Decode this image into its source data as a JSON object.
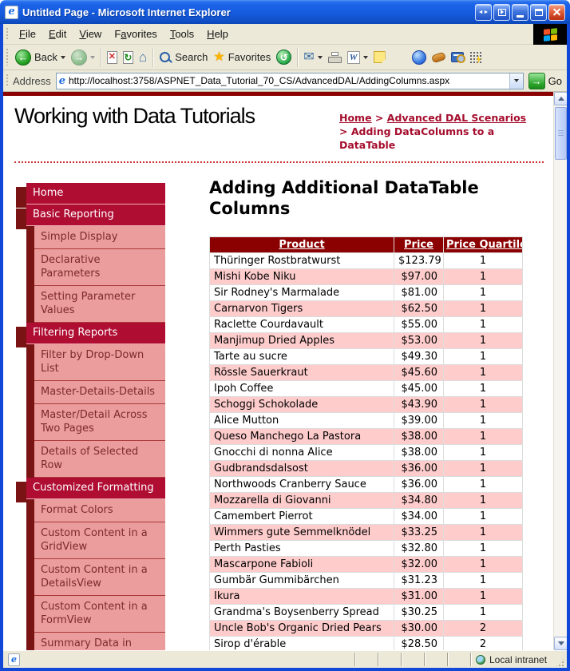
{
  "window": {
    "title": "Untitled Page - Microsoft Internet Explorer"
  },
  "menu": {
    "items": [
      {
        "label": "File",
        "accel": 0
      },
      {
        "label": "Edit",
        "accel": 0
      },
      {
        "label": "View",
        "accel": 0
      },
      {
        "label": "Favorites",
        "accel": 1
      },
      {
        "label": "Tools",
        "accel": 0
      },
      {
        "label": "Help",
        "accel": 0
      }
    ]
  },
  "toolbar": {
    "back_label": "Back",
    "search_label": "Search",
    "favorites_label": "Favorites"
  },
  "address": {
    "label": "Address",
    "url": "http://localhost:3758/ASPNET_Data_Tutorial_70_CS/AdvancedDAL/AddingColumns.aspx",
    "go_label": "Go"
  },
  "page": {
    "site_title": "Working with Data Tutorials",
    "breadcrumb": {
      "links": [
        "Home",
        "Advanced DAL Scenarios"
      ],
      "separator": ">",
      "current": "Adding DataColumns to a DataTable"
    },
    "sidebar": {
      "sections": [
        {
          "title": "Home",
          "items": []
        },
        {
          "title": "Basic Reporting",
          "items": [
            "Simple Display",
            "Declarative Parameters",
            "Setting Parameter Values"
          ]
        },
        {
          "title": "Filtering Reports",
          "items": [
            "Filter by Drop-Down List",
            "Master-Details-Details",
            "Master/Detail Across Two Pages",
            "Details of Selected Row"
          ]
        },
        {
          "title": "Customized Formatting",
          "items": [
            "Format Colors",
            "Custom Content in a GridView",
            "Custom Content in a DetailsView",
            "Custom Content in a FormView",
            "Summary Data in Footer"
          ]
        }
      ]
    },
    "heading": "Adding Additional DataTable Columns",
    "table": {
      "columns": [
        "Product",
        "Price",
        "Price Quartile"
      ],
      "rows": [
        [
          "Thüringer Rostbratwurst",
          "$123.79",
          "1"
        ],
        [
          "Mishi Kobe Niku",
          "$97.00",
          "1"
        ],
        [
          "Sir Rodney's Marmalade",
          "$81.00",
          "1"
        ],
        [
          "Carnarvon Tigers",
          "$62.50",
          "1"
        ],
        [
          "Raclette Courdavault",
          "$55.00",
          "1"
        ],
        [
          "Manjimup Dried Apples",
          "$53.00",
          "1"
        ],
        [
          "Tarte au sucre",
          "$49.30",
          "1"
        ],
        [
          "Rössle Sauerkraut",
          "$45.60",
          "1"
        ],
        [
          "Ipoh Coffee",
          "$45.00",
          "1"
        ],
        [
          "Schoggi Schokolade",
          "$43.90",
          "1"
        ],
        [
          "Alice Mutton",
          "$39.00",
          "1"
        ],
        [
          "Queso Manchego La Pastora",
          "$38.00",
          "1"
        ],
        [
          "Gnocchi di nonna Alice",
          "$38.00",
          "1"
        ],
        [
          "Gudbrandsdalsost",
          "$36.00",
          "1"
        ],
        [
          "Northwoods Cranberry Sauce",
          "$36.00",
          "1"
        ],
        [
          "Mozzarella di Giovanni",
          "$34.80",
          "1"
        ],
        [
          "Camembert Pierrot",
          "$34.00",
          "1"
        ],
        [
          "Wimmers gute Semmelknödel",
          "$33.25",
          "1"
        ],
        [
          "Perth Pasties",
          "$32.80",
          "1"
        ],
        [
          "Mascarpone Fabioli",
          "$32.00",
          "1"
        ],
        [
          "Gumbär Gummibärchen",
          "$31.23",
          "1"
        ],
        [
          "Ikura",
          "$31.00",
          "1"
        ],
        [
          "Grandma's Boysenberry Spread",
          "$30.25",
          "1"
        ],
        [
          "Uncle Bob's Organic Dried Pears",
          "$30.00",
          "2"
        ],
        [
          "Sirop d'érable",
          "$28.50",
          "2"
        ]
      ]
    }
  },
  "statusbar": {
    "zone": "Local intranet"
  },
  "colors": {
    "accent_crimson": "#B00D33",
    "maroon_dark": "#7A1414",
    "pink_item": "#EB9C9C",
    "table_header_red": "#8B0000",
    "row_pink": "#FFCCCC",
    "breadcrumb_red": "#A50D2D",
    "titlebar_blue": "#155BDF"
  }
}
